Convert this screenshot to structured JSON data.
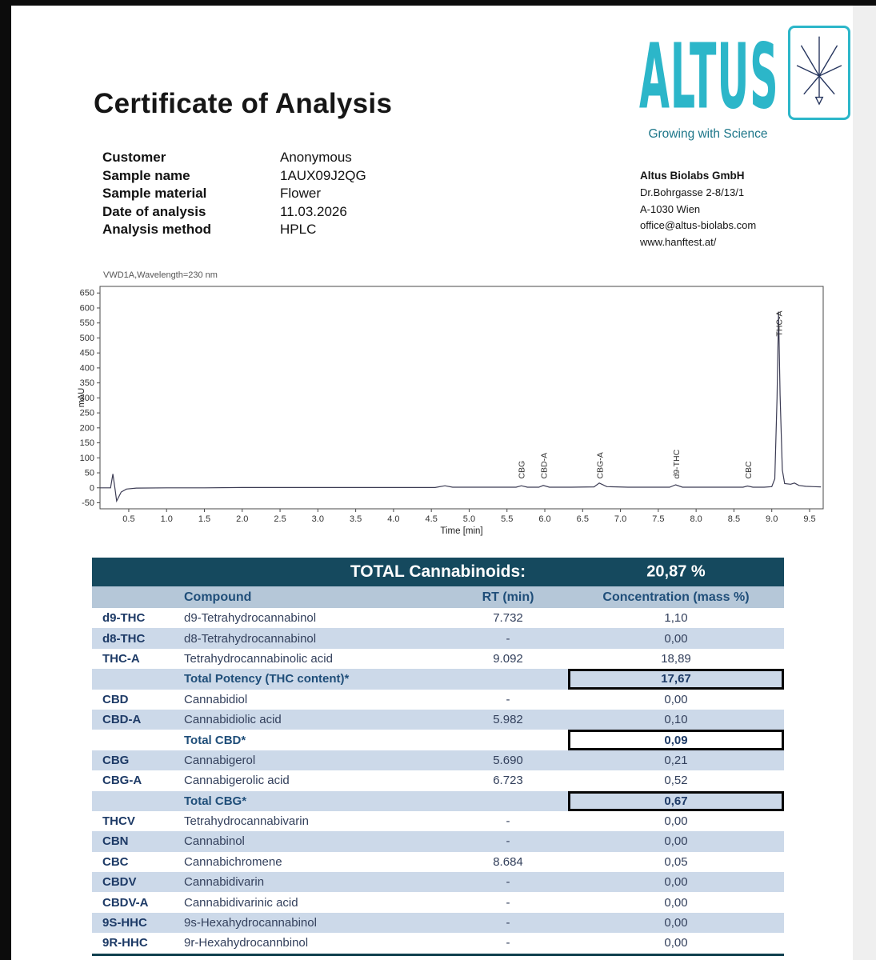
{
  "document": {
    "title": "Certificate of Analysis"
  },
  "logo": {
    "brand": "ALTUS",
    "tagline": "Growing with Science"
  },
  "company": {
    "name": "Altus Biolabs GmbH",
    "address_line1": "Dr.Bohrgasse 2-8/13/1",
    "address_line2": "A-1030 Wien",
    "email": "office@altus-biolabs.com",
    "website": "www.hanftest.at/"
  },
  "sample_info": {
    "rows": [
      {
        "label": "Customer",
        "value": "Anonymous"
      },
      {
        "label": "Sample name",
        "value": "1AUX09J2QG"
      },
      {
        "label": "Sample material",
        "value": "Flower"
      },
      {
        "label": "Date of analysis",
        "value": "11.03.2026"
      },
      {
        "label": "Analysis method",
        "value": "HPLC"
      }
    ]
  },
  "chart_data": {
    "type": "line",
    "title": "VWD1A,Wavelength=230 nm",
    "xlabel": "Time [min]",
    "ylabel": "mAU",
    "xlim": [
      0.12,
      9.68
    ],
    "ylim": [
      -70,
      672
    ],
    "xticks": [
      0.5,
      1.0,
      1.5,
      2.0,
      2.5,
      3.0,
      3.5,
      4.0,
      4.5,
      5.0,
      5.5,
      6.0,
      6.5,
      7.0,
      7.5,
      8.0,
      8.5,
      9.0,
      9.5
    ],
    "yticks": [
      650,
      600,
      550,
      500,
      450,
      400,
      350,
      300,
      250,
      200,
      150,
      100,
      50,
      0,
      -50
    ],
    "series": [
      {
        "name": "signal",
        "points": [
          [
            0.12,
            0
          ],
          [
            0.26,
            0
          ],
          [
            0.29,
            46
          ],
          [
            0.32,
            -6
          ],
          [
            0.34,
            -44
          ],
          [
            0.4,
            -14
          ],
          [
            0.47,
            -4
          ],
          [
            0.6,
            -1
          ],
          [
            1.0,
            0
          ],
          [
            1.5,
            0
          ],
          [
            2.0,
            1
          ],
          [
            2.5,
            1
          ],
          [
            3.0,
            1
          ],
          [
            3.5,
            1
          ],
          [
            4.0,
            1
          ],
          [
            4.55,
            1
          ],
          [
            4.68,
            7
          ],
          [
            4.78,
            2
          ],
          [
            5.0,
            2
          ],
          [
            5.3,
            2
          ],
          [
            5.62,
            2
          ],
          [
            5.69,
            7
          ],
          [
            5.77,
            2
          ],
          [
            5.92,
            2
          ],
          [
            5.98,
            8
          ],
          [
            6.06,
            2
          ],
          [
            6.35,
            2
          ],
          [
            6.65,
            3
          ],
          [
            6.72,
            16
          ],
          [
            6.82,
            4
          ],
          [
            7.1,
            2
          ],
          [
            7.65,
            2
          ],
          [
            7.73,
            10
          ],
          [
            7.82,
            2
          ],
          [
            8.3,
            2
          ],
          [
            8.62,
            2
          ],
          [
            8.68,
            6
          ],
          [
            8.75,
            2
          ],
          [
            8.9,
            2
          ],
          [
            9.0,
            4
          ],
          [
            9.04,
            30
          ],
          [
            9.07,
            300
          ],
          [
            9.09,
            588
          ],
          [
            9.11,
            310
          ],
          [
            9.14,
            60
          ],
          [
            9.17,
            14
          ],
          [
            9.25,
            12
          ],
          [
            9.3,
            16
          ],
          [
            9.36,
            8
          ],
          [
            9.45,
            5
          ],
          [
            9.55,
            4
          ],
          [
            9.65,
            3
          ]
        ]
      }
    ],
    "peaks": [
      {
        "label": "CBG",
        "x": 5.69,
        "label_y": 30
      },
      {
        "label": "CBD-A",
        "x": 5.982,
        "label_y": 30
      },
      {
        "label": "CBG-A",
        "x": 6.723,
        "label_y": 30
      },
      {
        "label": "d9-THC",
        "x": 7.732,
        "label_y": 30
      },
      {
        "label": "CBC",
        "x": 8.684,
        "label_y": 30
      },
      {
        "label": "THC-A",
        "x": 9.092,
        "label_y": 505
      }
    ]
  },
  "table": {
    "header_label": "TOTAL Cannabinoids:",
    "header_value": "20,87 %",
    "columns": [
      "Compound",
      "RT (min)",
      "Concentration (mass %)"
    ],
    "rows": [
      {
        "code": "d9-THC",
        "name": "d9-Tetrahydrocannabinol",
        "rt": "7.732",
        "conc": "1,10",
        "type": "data"
      },
      {
        "code": "d8-THC",
        "name": "d8-Tetrahydrocannabinol",
        "rt": "-",
        "conc": "0,00",
        "type": "data"
      },
      {
        "code": "THC-A",
        "name": "Tetrahydrocannabinolic acid",
        "rt": "9.092",
        "conc": "18,89",
        "type": "data"
      },
      {
        "code": "",
        "name": "Total Potency (THC content)*",
        "rt": "",
        "conc": "17,67",
        "type": "total"
      },
      {
        "code": "CBD",
        "name": "Cannabidiol",
        "rt": "-",
        "conc": "0,00",
        "type": "data"
      },
      {
        "code": "CBD-A",
        "name": "Cannabidiolic acid",
        "rt": "5.982",
        "conc": "0,10",
        "type": "data"
      },
      {
        "code": "",
        "name": "Total CBD*",
        "rt": "",
        "conc": "0,09",
        "type": "total"
      },
      {
        "code": "CBG",
        "name": "Cannabigerol",
        "rt": "5.690",
        "conc": "0,21",
        "type": "data"
      },
      {
        "code": "CBG-A",
        "name": "Cannabigerolic acid",
        "rt": "6.723",
        "conc": "0,52",
        "type": "data"
      },
      {
        "code": "",
        "name": "Total CBG*",
        "rt": "",
        "conc": "0,67",
        "type": "total"
      },
      {
        "code": "THCV",
        "name": "Tetrahydrocannabivarin",
        "rt": "-",
        "conc": "0,00",
        "type": "data"
      },
      {
        "code": "CBN",
        "name": "Cannabinol",
        "rt": "-",
        "conc": "0,00",
        "type": "data"
      },
      {
        "code": "CBC",
        "name": "Cannabichromene",
        "rt": "8.684",
        "conc": "0,05",
        "type": "data"
      },
      {
        "code": "CBDV",
        "name": "Cannabidivarin",
        "rt": "-",
        "conc": "0,00",
        "type": "data"
      },
      {
        "code": "CBDV-A",
        "name": "Cannabidivarinic acid",
        "rt": "-",
        "conc": "0,00",
        "type": "data"
      },
      {
        "code": "9S-HHC",
        "name": "9s-Hexahydrocannabinol",
        "rt": "-",
        "conc": "0,00",
        "type": "data"
      },
      {
        "code": "9R-HHC",
        "name": "9r-Hexahydrocannbinol",
        "rt": "-",
        "conc": "0,00",
        "type": "data"
      }
    ]
  },
  "colors": {
    "accent_teal": "#2cb6c9",
    "tagline_teal": "#1d7689",
    "table_header_bg": "#15495e",
    "column_header_bg": "#b5c7d8",
    "column_header_text": "#1f4e79",
    "row_alt_bg": "#ccd9e9",
    "code_text": "#1d3a66",
    "chart_line": "#3c3c54"
  }
}
